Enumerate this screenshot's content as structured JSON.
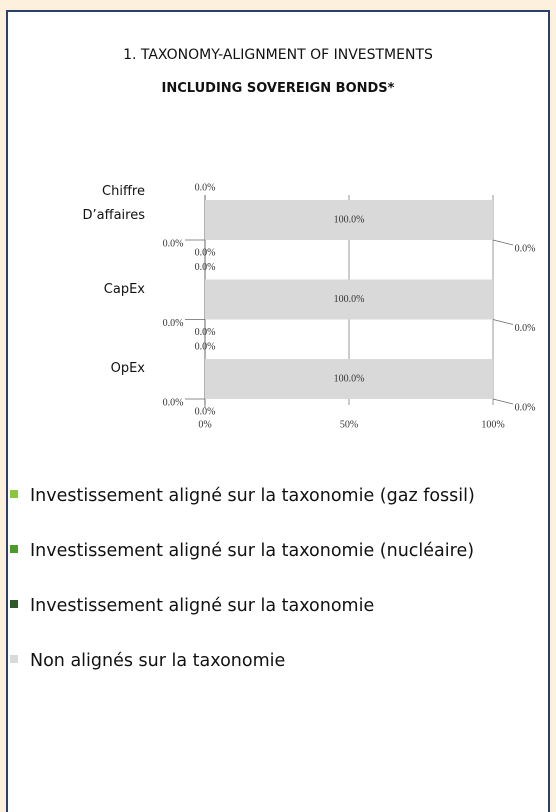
{
  "chart_data": {
    "type": "bar",
    "orientation": "horizontal",
    "stacked": true,
    "title": "1. TAXONOMY-ALIGNMENT OF INVESTMENTS",
    "subtitle": "INCLUDING SOVEREIGN BONDS*",
    "categories": [
      "Chiffre D’affaires",
      "CapEx",
      "OpEx"
    ],
    "series": [
      {
        "name": "Investissement aligné sur la taxonomie (gaz fossil)",
        "color": "#8cc63f",
        "values": [
          0,
          0,
          0
        ],
        "value_labels": [
          "0.0%",
          "0.0%",
          "0.0%"
        ]
      },
      {
        "name": "Investissement aligné sur la taxonomie (nucléaire)",
        "color": "#4c9a2a",
        "values": [
          0,
          0,
          0
        ],
        "value_labels": [
          "0.0%",
          "0.0%",
          "0.0%"
        ]
      },
      {
        "name": "Investissement aligné sur la taxonomie",
        "color": "#2f5a27",
        "values": [
          0,
          0,
          0
        ],
        "value_labels": [
          "0.0%",
          "0.0%",
          "0.0%"
        ]
      },
      {
        "name": "Non alignés sur la taxonomie",
        "color": "#d9d9d9",
        "values": [
          100,
          100,
          100
        ],
        "value_labels": [
          "100.0%",
          "100.0%",
          "100.0%"
        ]
      },
      {
        "color": "#d9d9d9",
        "values": [
          0,
          0,
          0
        ],
        "value_labels": [
          "0.0%",
          "0.0%",
          "0.0%"
        ]
      }
    ],
    "xlim": [
      0,
      100
    ],
    "xticks": [
      {
        "value": 0,
        "label": "0%"
      },
      {
        "value": 50,
        "label": "50%"
      },
      {
        "value": 100,
        "label": "100%"
      }
    ],
    "grid": true
  }
}
